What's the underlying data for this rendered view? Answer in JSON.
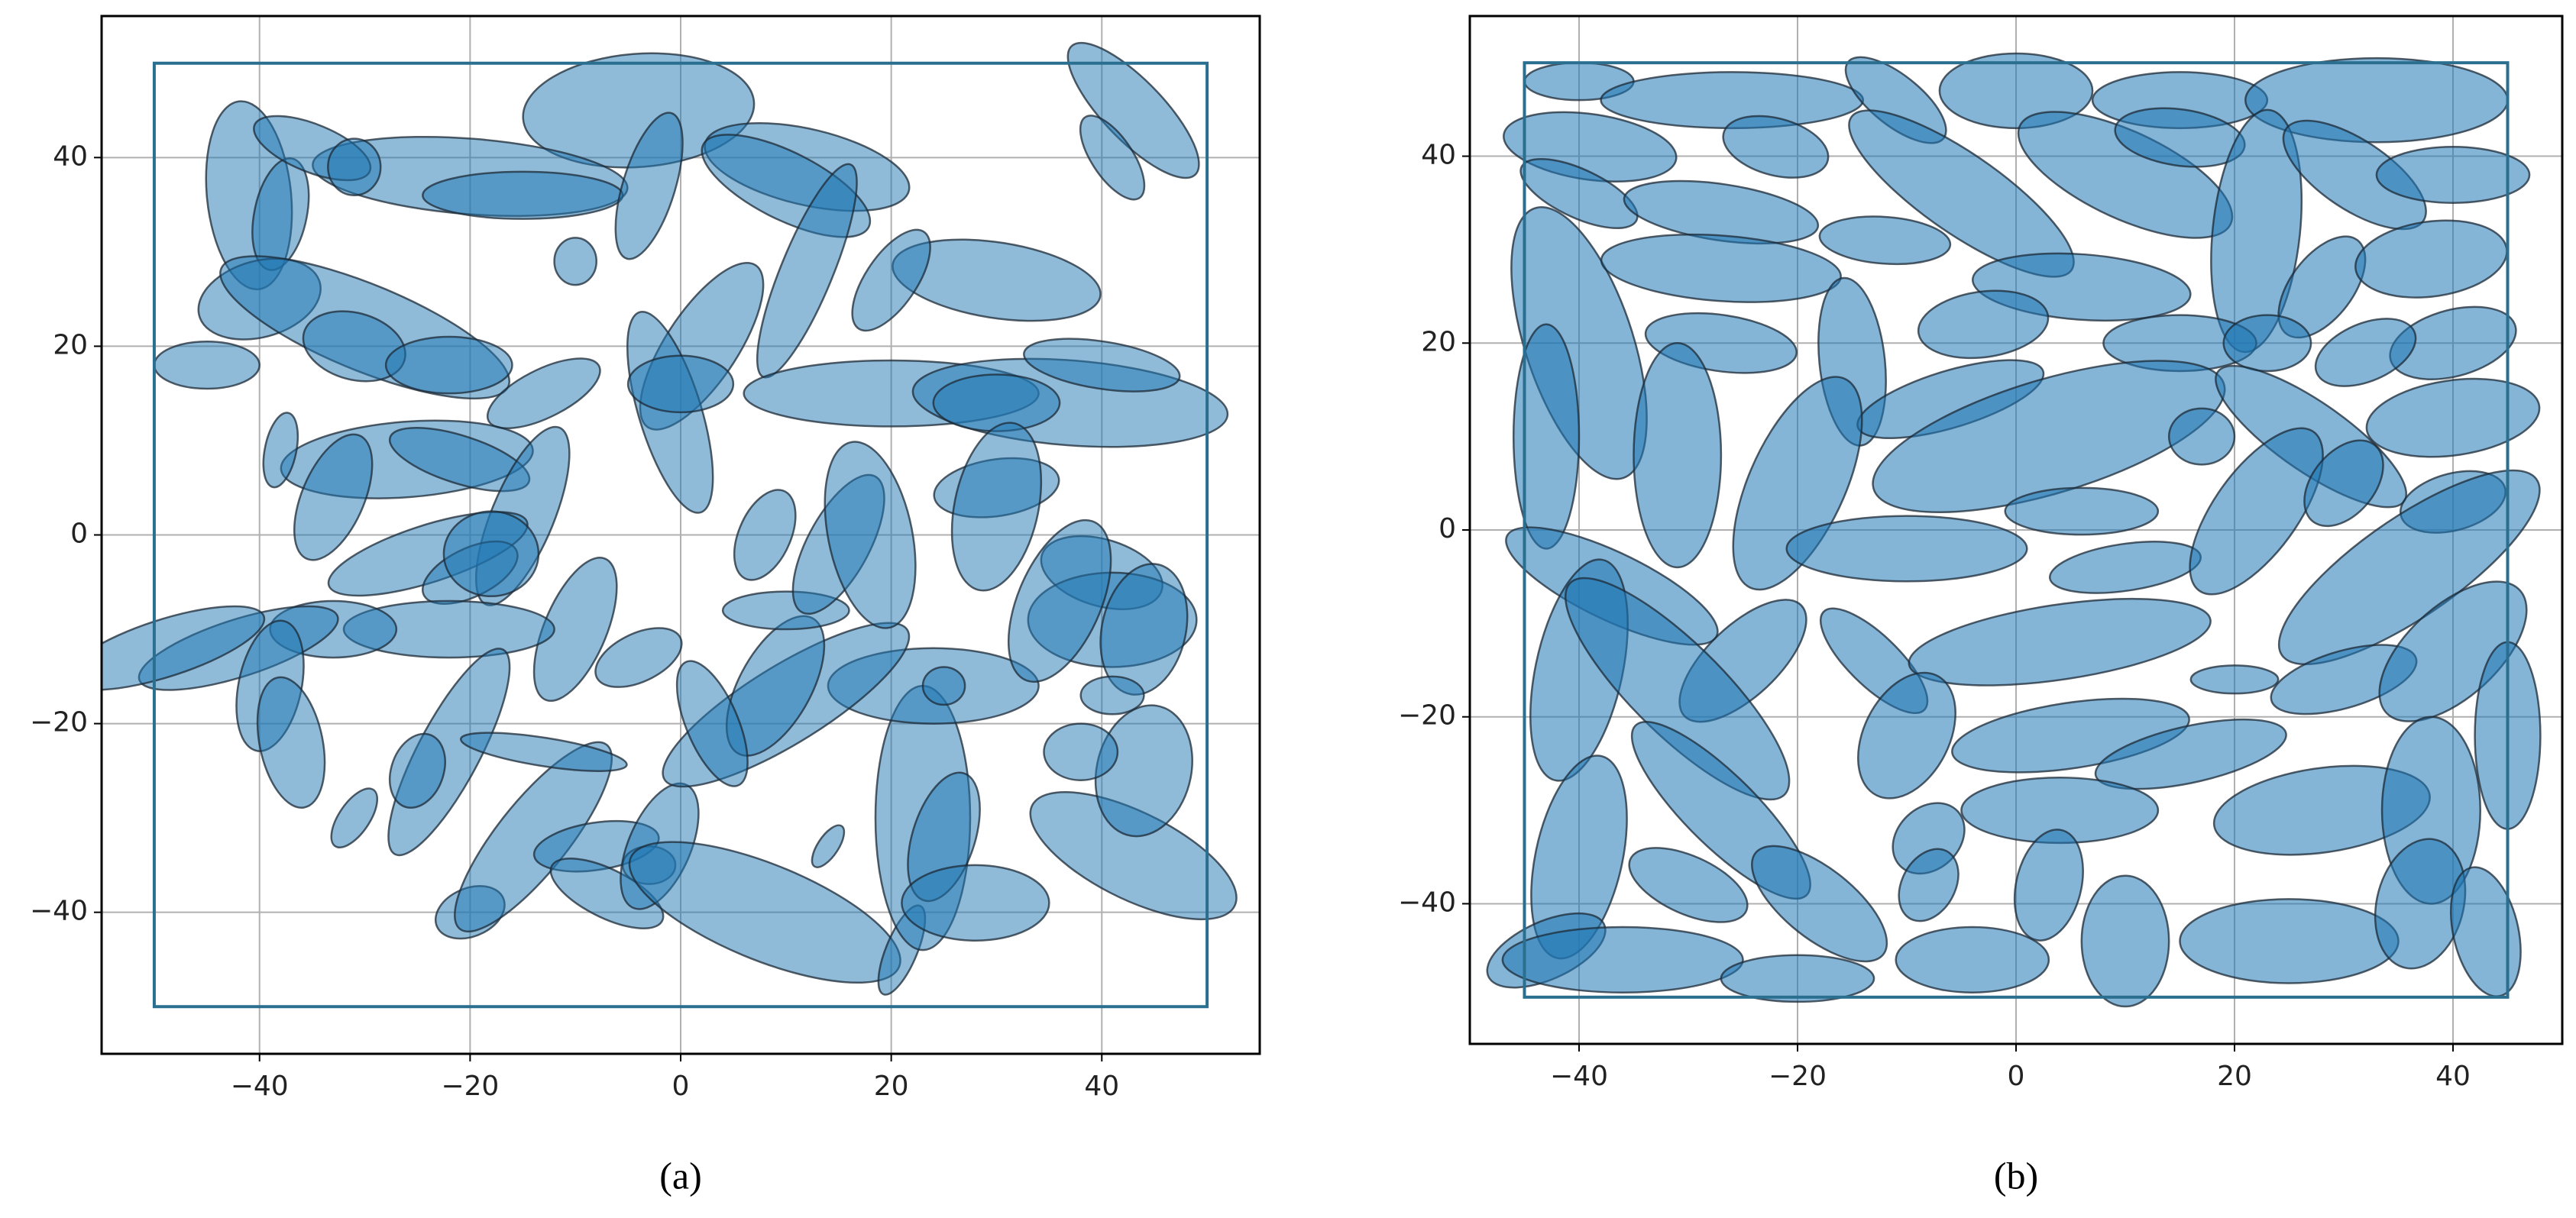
{
  "chart_data": [
    {
      "type": "ellipse",
      "caption": "(a)",
      "xlim": [
        -55,
        55
      ],
      "ylim": [
        -55,
        55
      ],
      "xticks": [
        {
          "value": -40,
          "label": "−40"
        },
        {
          "value": -20,
          "label": "−20"
        },
        0,
        20,
        40
      ],
      "yticks": [
        {
          "value": -40,
          "label": "−40"
        },
        {
          "value": -20,
          "label": "−20"
        },
        0,
        20,
        40
      ],
      "grid": true,
      "color": "#1f77b4",
      "alpha": 0.5,
      "frame": {
        "x": [
          -50,
          50
        ],
        "y": [
          -50,
          50
        ],
        "color": "#2a6f8f"
      },
      "ellipses": {
        "x": [
          -4,
          -20,
          -15,
          -41,
          -38,
          -35,
          -31,
          -3,
          12,
          10,
          43,
          41,
          -10,
          12,
          30,
          20,
          -40,
          -30,
          -31,
          -45,
          -22,
          2,
          -1,
          0,
          20,
          37,
          40,
          30,
          -13,
          -26,
          -21,
          -38,
          -33,
          -15,
          -24,
          -20,
          -18,
          -10,
          -22,
          -33,
          -42,
          -39,
          -37,
          -22,
          -25,
          -31,
          -20,
          -14,
          -13,
          -8,
          -7,
          -3,
          -2,
          8,
          14,
          21,
          23,
          25,
          28,
          43,
          44,
          38,
          24,
          25,
          10,
          9,
          3,
          -4,
          10,
          8,
          15,
          18,
          30,
          30,
          40,
          41,
          44,
          36,
          41,
          -49
        ],
        "y": [
          45,
          38,
          36,
          36,
          34,
          41,
          39,
          37,
          39,
          37,
          45,
          40,
          29,
          28,
          27,
          27,
          25,
          22,
          20,
          18,
          18,
          20,
          13,
          16,
          15,
          14,
          18,
          14,
          15,
          8,
          8,
          9,
          4,
          2,
          -2,
          -4,
          -2,
          -10,
          -10,
          -10,
          -12,
          -16,
          -22,
          -23,
          -25,
          -30,
          -40,
          -32,
          -23,
          -33,
          -38,
          -35,
          -33,
          -40,
          -33,
          -44,
          -30,
          -32,
          -39,
          -34,
          -25,
          -23,
          -16,
          -16,
          -18,
          -16,
          -20,
          -13,
          -8,
          0,
          -1,
          0,
          5,
          3,
          -4,
          -9,
          -10,
          -7,
          -17,
          -12
        ],
        "width": [
          22,
          30,
          19,
          20,
          12,
          12,
          5,
          16,
          20,
          18,
          18,
          10,
          4,
          24,
          20,
          12,
          12,
          30,
          10,
          10,
          12,
          20,
          22,
          10,
          28,
          30,
          15,
          12,
          12,
          24,
          14,
          8,
          14,
          20,
          20,
          10,
          9,
          16,
          20,
          12,
          20,
          14,
          14,
          24,
          8,
          7,
          7,
          24,
          16,
          12,
          12,
          5,
          14,
          28,
          5,
          10,
          28,
          14,
          14,
          22,
          14,
          7,
          20,
          4,
          28,
          16,
          14,
          9,
          12,
          10,
          16,
          20,
          12,
          18,
          12,
          16,
          14,
          18,
          6,
          20
        ],
        "height": [
          12,
          8,
          5,
          8,
          5,
          5,
          6,
          5,
          8,
          7,
          6,
          4,
          5,
          5,
          8,
          5,
          8,
          9,
          7,
          5,
          6,
          7,
          6,
          6,
          7,
          9,
          5,
          6,
          5,
          8,
          5,
          3,
          6,
          6,
          6,
          5,
          9,
          6,
          6,
          6,
          6,
          6,
          6,
          6,
          5,
          3,
          5,
          7,
          3,
          5,
          5,
          4,
          6,
          10,
          2,
          3,
          9,
          6,
          8,
          9,
          9,
          6,
          8,
          4,
          8,
          7,
          5,
          5,
          4,
          5,
          6,
          8,
          6,
          8,
          7,
          10,
          8,
          8,
          4,
          6
        ],
        "angle": [
          5,
          -5,
          0,
          95,
          80,
          -25,
          0,
          75,
          -15,
          -30,
          -50,
          -60,
          0,
          70,
          -10,
          60,
          20,
          -25,
          -20,
          0,
          0,
          60,
          105,
          0,
          0,
          -5,
          -10,
          0,
          30,
          5,
          -20,
          80,
          70,
          70,
          20,
          30,
          0,
          70,
          0,
          0,
          20,
          80,
          100,
          65,
          75,
          60,
          30,
          55,
          -10,
          10,
          -30,
          0,
          70,
          -25,
          60,
          70,
          90,
          75,
          0,
          -30,
          80,
          0,
          0,
          0,
          35,
          65,
          110,
          30,
          0,
          70,
          65,
          100,
          10,
          80,
          -20,
          0,
          80,
          70,
          0,
          20
        ]
      }
    },
    {
      "type": "ellipse",
      "caption": "(b)",
      "xlim": [
        -50,
        50
      ],
      "ylim": [
        -55,
        55
      ],
      "xticks": [
        {
          "value": -40,
          "label": "−40"
        },
        {
          "value": -20,
          "label": "−20"
        },
        0,
        20,
        40
      ],
      "yticks": [
        {
          "value": -40,
          "label": "−40"
        },
        {
          "value": -20,
          "label": "−20"
        },
        0,
        20,
        40
      ],
      "grid": true,
      "color": "#1f77b4",
      "alpha": 0.55,
      "frame": {
        "x": [
          -45,
          45
        ],
        "y": [
          -50,
          50
        ],
        "color": "#2a6f8f"
      },
      "ellipses": {
        "x": [
          -40,
          -26,
          -11,
          0,
          15,
          33,
          -39,
          -22,
          -5,
          10,
          15,
          22,
          31,
          40,
          -40,
          -27,
          -40,
          -27,
          -12,
          6,
          28,
          38,
          -27,
          -15,
          -3,
          -6,
          15,
          23,
          40,
          32,
          -43,
          -31,
          -20,
          3,
          17,
          27,
          40,
          40,
          -37,
          -10,
          6,
          -25,
          10,
          22,
          36,
          30,
          -40,
          -31,
          -13,
          4,
          20,
          30,
          40,
          -40,
          -27,
          -10,
          5,
          16,
          28,
          38,
          45,
          -8,
          4,
          -43,
          -36,
          -30,
          -18,
          -20,
          -4,
          -8,
          3,
          10,
          25,
          37,
          43
        ],
        "y": [
          48,
          46,
          46,
          47,
          46,
          46,
          41,
          41,
          36,
          38,
          42,
          32,
          38,
          38,
          36,
          34,
          20,
          28,
          31,
          26,
          26,
          29,
          20,
          18,
          22,
          14,
          20,
          20,
          20,
          19,
          10,
          8,
          5,
          10,
          10,
          10,
          12,
          3,
          -6,
          -2,
          2,
          -14,
          -4,
          2,
          -4,
          5,
          -15,
          -17,
          -14,
          -12,
          -16,
          -16,
          -13,
          -35,
          -30,
          -22,
          -22,
          -24,
          -30,
          -30,
          -22,
          -33,
          -30,
          -45,
          -46,
          -38,
          -40,
          -48,
          -46,
          -38,
          -38,
          -44,
          -44,
          -40,
          -43
        ],
        "width": [
          10,
          24,
          12,
          14,
          16,
          24,
          16,
          10,
          26,
          22,
          12,
          26,
          16,
          14,
          12,
          18,
          30,
          22,
          12,
          20,
          12,
          14,
          14,
          18,
          12,
          18,
          14,
          8,
          12,
          10,
          24,
          24,
          24,
          34,
          6,
          22,
          16,
          10,
          22,
          22,
          14,
          16,
          14,
          20,
          30,
          10,
          24,
          30,
          14,
          28,
          8,
          14,
          18,
          22,
          24,
          14,
          22,
          18,
          20,
          20,
          20,
          8,
          18,
          12,
          22,
          12,
          16,
          14,
          14,
          8,
          12,
          14,
          20,
          14,
          14
        ],
        "height": [
          4,
          6,
          5,
          8,
          6,
          9,
          7,
          6,
          8,
          9,
          6,
          8,
          7,
          6,
          5,
          6,
          10,
          7,
          5,
          7,
          6,
          8,
          6,
          6,
          7,
          6,
          6,
          6,
          7,
          6,
          6,
          8,
          9,
          12,
          6,
          7,
          8,
          6,
          7,
          7,
          5,
          7,
          5,
          8,
          10,
          6,
          8,
          9,
          5,
          8,
          3,
          6,
          9,
          8,
          7,
          8,
          7,
          6,
          9,
          9,
          6,
          6,
          7,
          6,
          7,
          6,
          7,
          5,
          7,
          5,
          6,
          8,
          9,
          8,
          6
        ],
        "angle": [
          0,
          0,
          -45,
          0,
          0,
          0,
          -10,
          -20,
          -40,
          -30,
          -10,
          85,
          -40,
          0,
          -30,
          -10,
          105,
          -5,
          -5,
          -5,
          60,
          10,
          -10,
          95,
          10,
          20,
          0,
          0,
          20,
          30,
          90,
          90,
          70,
          20,
          0,
          -40,
          10,
          20,
          -30,
          0,
          0,
          50,
          10,
          60,
          40,
          60,
          80,
          -50,
          -50,
          10,
          0,
          20,
          50,
          80,
          -50,
          70,
          10,
          15,
          10,
          90,
          90,
          60,
          0,
          30,
          0,
          -30,
          -45,
          0,
          0,
          70,
          80,
          90,
          0,
          80,
          100
        ]
      }
    }
  ]
}
